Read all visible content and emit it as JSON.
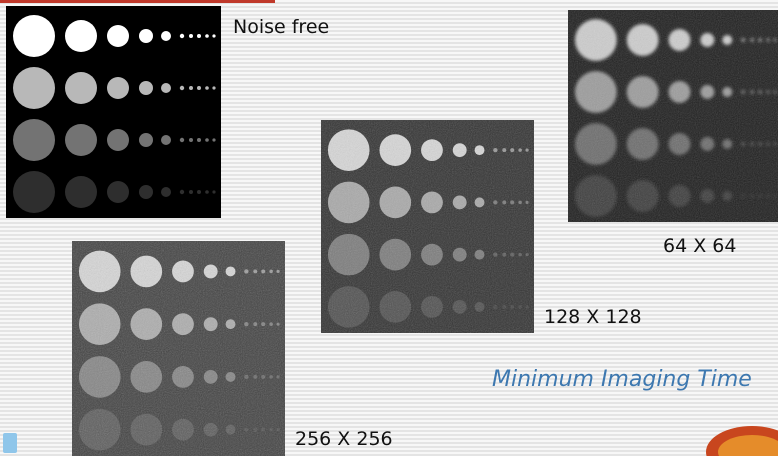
{
  "panels": [
    {
      "label": "Noise free"
    },
    {
      "label": "64 X 64"
    },
    {
      "label": "128 X 128"
    },
    {
      "label": "256 X 256"
    }
  ],
  "caption": "Minimum Imaging Time"
}
